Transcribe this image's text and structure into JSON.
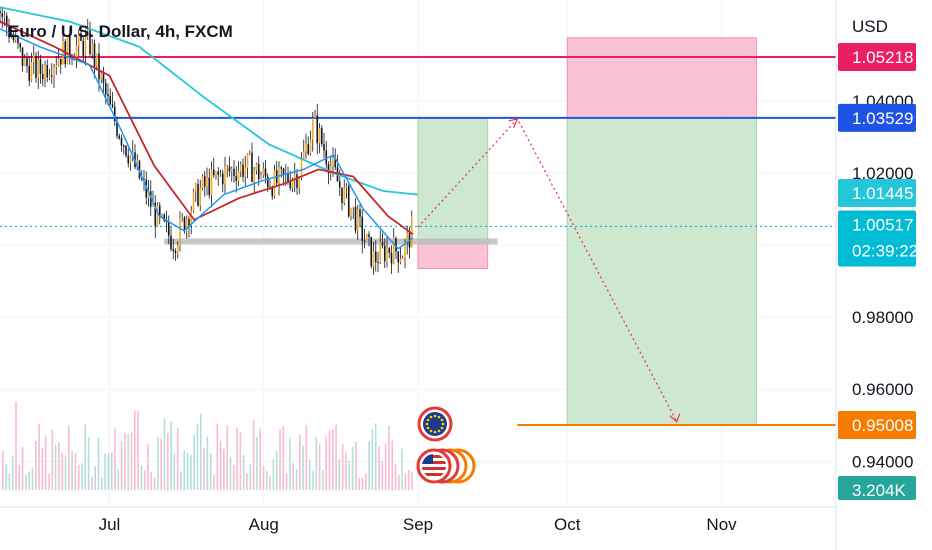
{
  "header": {
    "title": "Euro / U.S. Dollar, 4h, FXCM",
    "currency": "USD"
  },
  "price_axis": {
    "ticks": [
      "1.04000",
      "1.02000",
      "0.98000",
      "0.96000",
      "0.94000"
    ],
    "badges": [
      {
        "label": "1.05218",
        "color": "#e91e63",
        "text_color": "#ffffff"
      },
      {
        "label": "1.03529",
        "color": "#1e53e5",
        "text_color": "#ffffff"
      },
      {
        "label": "1.01445",
        "color": "#26c6da",
        "text_color": "#131722"
      },
      {
        "label": "1.00517",
        "sub_label": "02:39:22",
        "color": "#00bcd4",
        "text_color": "#131722"
      },
      {
        "label": "0.95008",
        "color": "#f57c00",
        "text_color": "#ffffff"
      },
      {
        "label": "3.204K",
        "color": "#26a69a",
        "text_color": "#ffffff"
      }
    ]
  },
  "time_axis": {
    "ticks": [
      "Jul",
      "Aug",
      "Sep",
      "Oct",
      "Nov"
    ]
  },
  "colors": {
    "up_candle": "#f5a623",
    "down_candle": "#131722",
    "ma_fast": "#2196f3",
    "ma_slow": "#c62828",
    "ma_long": "#26c6da",
    "resistance_line": "#e91e63",
    "entry_line": "#1e53e5",
    "target_line": "#f57c00",
    "profit_zone": "#c8e6c9",
    "loss_zone": "#f8bbd0",
    "current_price_line": "#00bcd4"
  },
  "chart_data": {
    "type": "candlestick",
    "symbol": "EURUSD",
    "timeframe": "4h",
    "x_range": [
      "2022-06-09",
      "2022-11-24"
    ],
    "ylim": [
      0.925,
      1.068
    ],
    "horizontal_levels": [
      1.05218,
      1.03529,
      0.95008
    ],
    "current_price": 1.00517,
    "close_series": {
      "x": [
        "2022-06-09",
        "2022-06-14",
        "2022-06-17",
        "2022-06-22",
        "2022-06-27",
        "2022-07-01",
        "2022-07-06",
        "2022-07-11",
        "2022-07-14",
        "2022-07-19",
        "2022-07-24",
        "2022-07-29",
        "2022-08-03",
        "2022-08-08",
        "2022-08-11",
        "2022-08-16",
        "2022-08-19",
        "2022-08-23",
        "2022-08-26",
        "2022-08-29",
        "2022-08-31"
      ],
      "values": [
        1.065,
        1.05,
        1.048,
        1.054,
        1.056,
        1.038,
        1.022,
        1.006,
        1.001,
        1.015,
        1.02,
        1.022,
        1.017,
        1.02,
        1.034,
        1.017,
        1.009,
        0.996,
        0.999,
        0.998,
        1.005
      ]
    },
    "ma_fast_series": {
      "x": [
        "2022-06-09",
        "2022-06-17",
        "2022-06-27",
        "2022-07-04",
        "2022-07-11",
        "2022-07-16",
        "2022-07-24",
        "2022-08-01",
        "2022-08-09",
        "2022-08-15",
        "2022-08-21",
        "2022-08-28",
        "2022-08-31"
      ],
      "values": [
        1.06,
        1.055,
        1.05,
        1.03,
        1.008,
        1.004,
        1.014,
        1.018,
        1.021,
        1.025,
        1.01,
        0.999,
        1.002
      ]
    },
    "ma_slow_series": {
      "x": [
        "2022-06-09",
        "2022-06-20",
        "2022-07-01",
        "2022-07-10",
        "2022-07-18",
        "2022-07-27",
        "2022-08-05",
        "2022-08-12",
        "2022-08-19",
        "2022-08-26",
        "2022-08-31"
      ],
      "values": [
        1.062,
        1.055,
        1.047,
        1.022,
        1.007,
        1.013,
        1.017,
        1.021,
        1.019,
        1.008,
        1.003
      ]
    },
    "ma_long_series": {
      "x": [
        "2022-06-09",
        "2022-06-23",
        "2022-07-07",
        "2022-07-20",
        "2022-08-02",
        "2022-08-15",
        "2022-08-25",
        "2022-09-01"
      ],
      "values": [
        1.066,
        1.062,
        1.055,
        1.041,
        1.028,
        1.02,
        1.015,
        1.014
      ]
    },
    "positions": [
      {
        "type": "long",
        "start": "2022-09-01",
        "end": "2022-09-15",
        "entry": 1.0005,
        "target": 1.03529,
        "stop": 0.9935
      },
      {
        "type": "short",
        "start": "2022-10-01",
        "end": "2022-11-08",
        "entry": 1.03529,
        "target": 0.95008,
        "stop": 1.0575
      }
    ],
    "projected_path": {
      "x": [
        "2022-09-01",
        "2022-09-21",
        "2022-10-23"
      ],
      "values": [
        1.005,
        1.035,
        0.951
      ]
    },
    "support_zone": {
      "start": "2022-07-12",
      "end": "2022-09-17",
      "price": 1.001
    }
  }
}
